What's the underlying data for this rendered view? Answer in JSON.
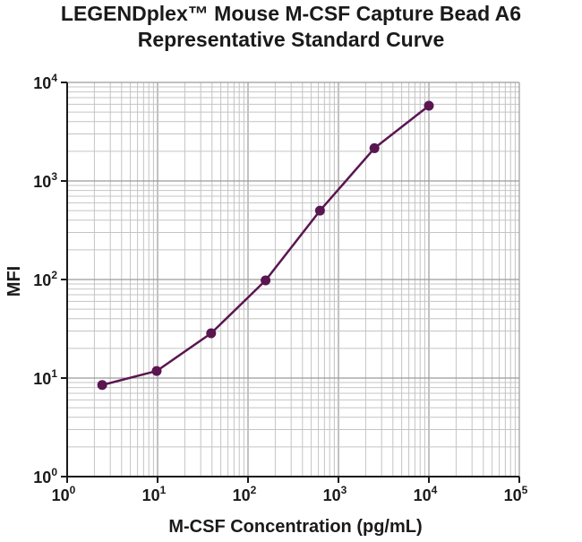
{
  "chart_data": {
    "type": "line",
    "title": "LEGENDplex™ Mouse M-CSF Capture Bead A6",
    "subtitle": "Representative Standard Curve",
    "xlabel": "M-CSF Concentration (pg/mL)",
    "ylabel": "MFI",
    "x_scale": "log",
    "y_scale": "log",
    "xlim": [
      1,
      100000
    ],
    "ylim": [
      1,
      10000
    ],
    "grid": true,
    "x_ticks": [
      {
        "base": "10",
        "exp": "0"
      },
      {
        "base": "10",
        "exp": "1"
      },
      {
        "base": "10",
        "exp": "2"
      },
      {
        "base": "10",
        "exp": "3"
      },
      {
        "base": "10",
        "exp": "4"
      },
      {
        "base": "10",
        "exp": "5"
      }
    ],
    "y_ticks": [
      {
        "base": "10",
        "exp": "0"
      },
      {
        "base": "10",
        "exp": "1"
      },
      {
        "base": "10",
        "exp": "2"
      },
      {
        "base": "10",
        "exp": "3"
      },
      {
        "base": "10",
        "exp": "4"
      }
    ],
    "series": [
      {
        "color": "#5a1650",
        "x": [
          2.44,
          9.77,
          39.1,
          156.3,
          625,
          2500,
          10000
        ],
        "y": [
          8.5,
          11.8,
          28.5,
          98,
          500,
          2150,
          5800
        ]
      }
    ]
  }
}
